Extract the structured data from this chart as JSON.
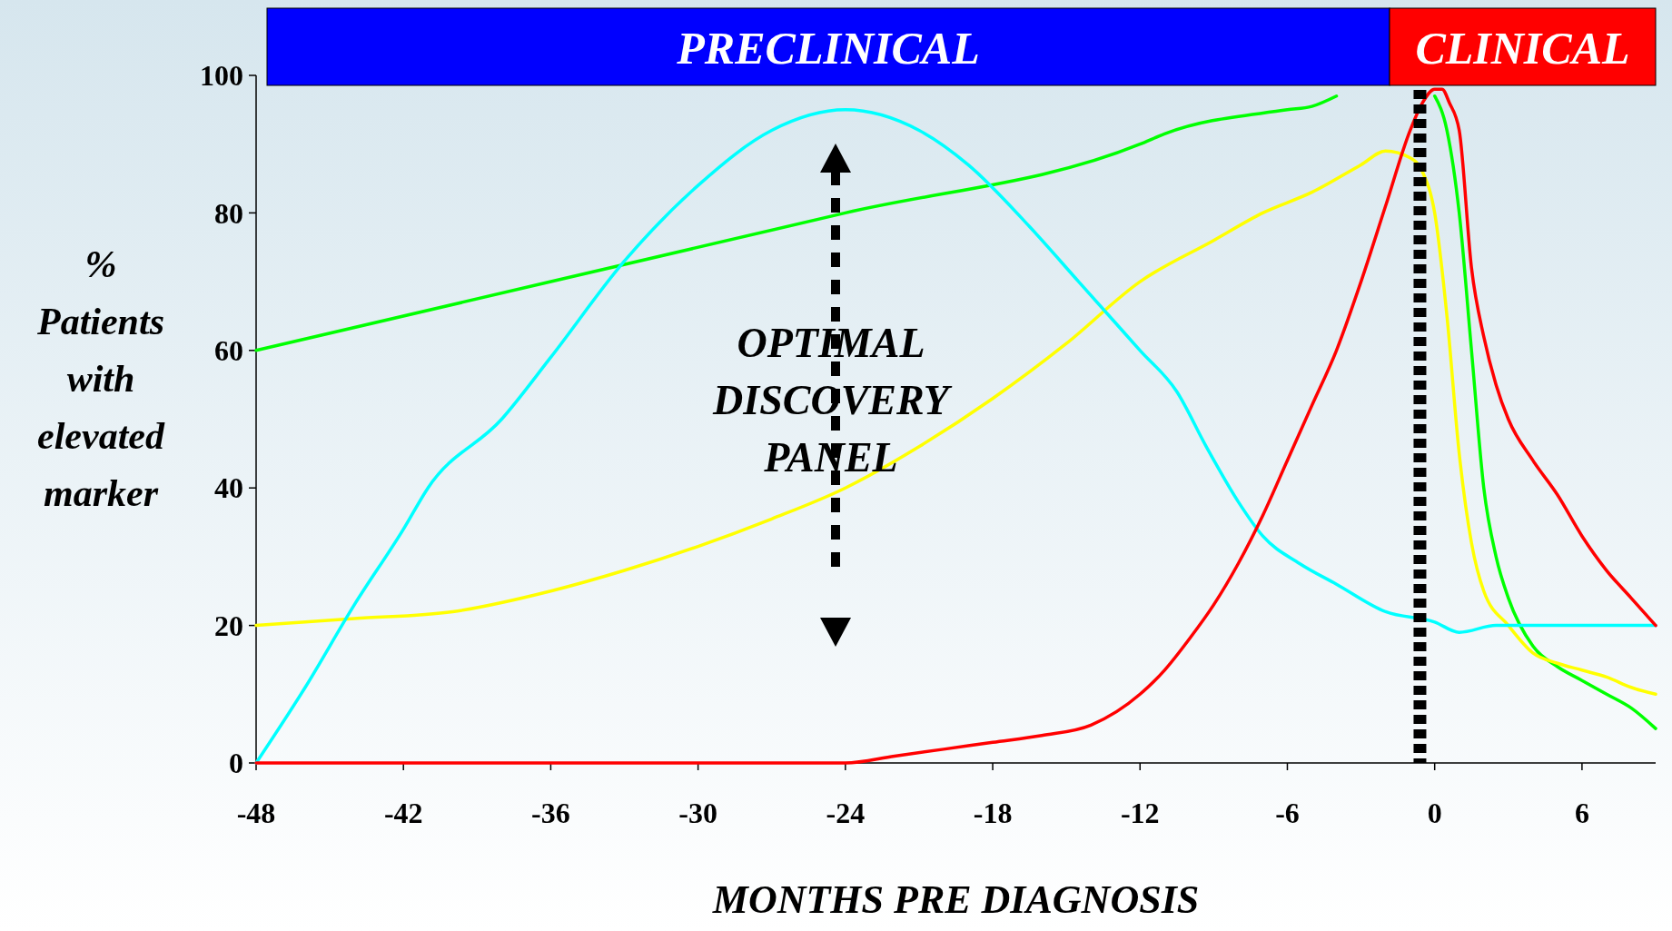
{
  "chart_data": {
    "type": "line",
    "xlabel": "MONTHS PRE DIAGNOSIS",
    "ylabel": "%\nPatients\nwith\nelevated\nmarker",
    "xlim": [
      -48,
      9
    ],
    "xticks": [
      -48,
      -42,
      -36,
      -30,
      -24,
      -18,
      -12,
      -6,
      0,
      6
    ],
    "ylim": [
      0,
      100
    ],
    "yticks": [
      0,
      20,
      40,
      60,
      80,
      100
    ],
    "grid": false,
    "marker": "none",
    "line_style": "solid",
    "series": [
      {
        "color": "#00ff00",
        "x": [
          -48,
          -24,
          -12,
          -11,
          -6,
          -5,
          -4,
          -2,
          0,
          0.5,
          1,
          1.5,
          2,
          2.5,
          3,
          4,
          5,
          6,
          7,
          8,
          9
        ],
        "values": [
          60,
          80,
          90,
          91.5,
          95,
          95.5,
          97,
          null,
          97,
          92,
          80,
          60,
          40,
          30,
          24,
          17,
          14,
          12,
          10,
          8,
          5
        ]
      },
      {
        "color": "#ffff00",
        "x": [
          -48,
          -44,
          -40,
          -36,
          -33,
          -30,
          -27,
          -24,
          -21,
          -18,
          -15,
          -12,
          -9,
          -7,
          -5,
          -3,
          -2,
          -1,
          -0.5,
          0,
          0.5,
          1,
          1.5,
          2,
          3,
          4,
          5,
          6,
          7,
          8,
          9
        ],
        "values": [
          20,
          21,
          22,
          25,
          28,
          31.5,
          35.5,
          40,
          46,
          53,
          61,
          70,
          76,
          80,
          83,
          87,
          89,
          88,
          86,
          80,
          65,
          45,
          32,
          25,
          20,
          16,
          14.5,
          13.5,
          12.5,
          11,
          10
        ]
      },
      {
        "color": "#00ffff",
        "x": [
          -48,
          -46,
          -44,
          -42,
          -41,
          -38,
          -36,
          -33,
          -30,
          -27,
          -24,
          -21,
          -19,
          -16.5,
          -14.5,
          -13,
          -12,
          -10.5,
          -9.3,
          -8,
          -7,
          -5.5,
          -4,
          -2,
          0,
          1,
          2.5,
          4,
          9
        ],
        "values": [
          0,
          11,
          23,
          34,
          40,
          50,
          59,
          73,
          84,
          92,
          95,
          92,
          87,
          78,
          70,
          64,
          60,
          54,
          46,
          38,
          33,
          29,
          26,
          22,
          20.5,
          19,
          20,
          20,
          20
        ]
      },
      {
        "color": "#ff0000",
        "x": [
          -48,
          -24,
          -22,
          -20,
          -18,
          -16,
          -14,
          -12,
          -11,
          -10,
          -9,
          -8,
          -7,
          -6,
          -5,
          -4,
          -3,
          -2,
          -1,
          -0.5,
          0,
          0.3,
          0.6,
          1,
          1.5,
          2,
          2.5,
          3,
          4,
          5,
          6,
          7,
          8,
          9
        ],
        "values": [
          0,
          0,
          1,
          2,
          3,
          4,
          5.5,
          10,
          13.5,
          18,
          23,
          29,
          36,
          44,
          52,
          60,
          70,
          81,
          92,
          96,
          98,
          98,
          96,
          92,
          72,
          62,
          55,
          50,
          44,
          39,
          33,
          28,
          24,
          20
        ]
      }
    ],
    "ref_lines": [
      {
        "axis": "x",
        "value": -0.6,
        "color": "#000000",
        "line_style": "dotted"
      }
    ],
    "annotations": [
      "PRECLINICAL",
      "CLINICAL",
      "OPTIMAL\nDISCOVERY\nPANEL"
    ]
  }
}
